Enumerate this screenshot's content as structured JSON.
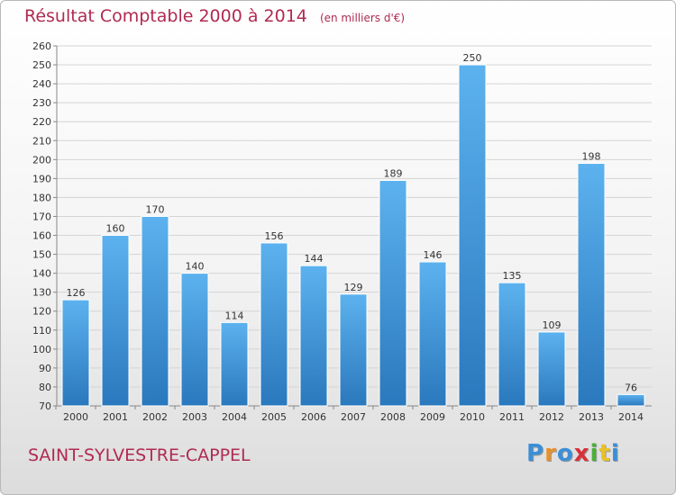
{
  "chart_data": {
    "type": "bar",
    "title": "Résultat Comptable 2000 à 2014",
    "subtitle": "(en milliers d'€)",
    "categories": [
      "2000",
      "2001",
      "2002",
      "2003",
      "2004",
      "2005",
      "2006",
      "2007",
      "2008",
      "2009",
      "2010",
      "2011",
      "2012",
      "2013",
      "2014"
    ],
    "values": [
      126,
      160,
      170,
      140,
      114,
      156,
      144,
      129,
      189,
      146,
      250,
      135,
      109,
      198,
      76
    ],
    "ylim": [
      70,
      260
    ],
    "ytick_step": 10,
    "grid": true,
    "bar_color": "#4a9ee0"
  },
  "place_name": "SAINT-SYLVESTRE-CAPPEL",
  "logo": {
    "letters": [
      "P",
      "r",
      "o",
      "x",
      "i",
      "t",
      "i"
    ],
    "colors": [
      "#3b8fd8",
      "#e8912a",
      "#3b8fd8",
      "#d8303a",
      "#4caf3a",
      "#e8c12a",
      "#3b8fd8"
    ]
  }
}
